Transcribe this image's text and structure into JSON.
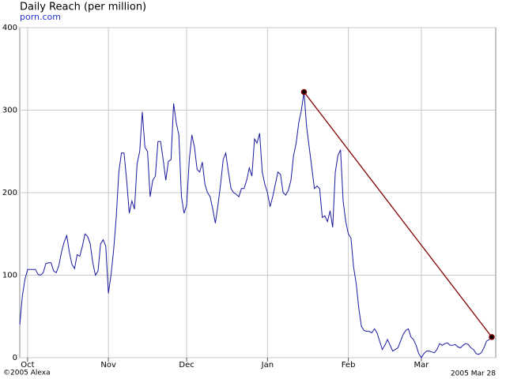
{
  "chart_data": {
    "type": "line",
    "title": "Daily Reach (per million)",
    "subtitle": "porn.com",
    "annotations": [
      "©2005 Alexa",
      "2005 Mar 28"
    ],
    "series": [
      {
        "name": "porn.com",
        "color": "#1a1aa0",
        "values": [
          40,
          75,
          95,
          107,
          107,
          107,
          107,
          101,
          100,
          103,
          114,
          115,
          115,
          105,
          103,
          112,
          128,
          140,
          148,
          128,
          113,
          108,
          125,
          123,
          135,
          150,
          147,
          138,
          115,
          100,
          105,
          138,
          143,
          135,
          78,
          100,
          130,
          170,
          225,
          248,
          248,
          215,
          175,
          190,
          180,
          235,
          250,
          298,
          255,
          250,
          195,
          215,
          220,
          262,
          262,
          240,
          215,
          238,
          240,
          308,
          285,
          270,
          195,
          175,
          185,
          240,
          270,
          255,
          228,
          225,
          237,
          210,
          200,
          195,
          180,
          163,
          185,
          210,
          240,
          248,
          225,
          205,
          200,
          198,
          195,
          205,
          205,
          215,
          230,
          220,
          265,
          260,
          272,
          225,
          210,
          200,
          183,
          195,
          210,
          225,
          222,
          200,
          197,
          203,
          215,
          245,
          260,
          285,
          300,
          322,
          280,
          255,
          230,
          205,
          208,
          205,
          170,
          172,
          165,
          178,
          158,
          225,
          245,
          252,
          190,
          165,
          150,
          145,
          110,
          90,
          60,
          38,
          33,
          32,
          32,
          30,
          35,
          30,
          20,
          10,
          15,
          22,
          15,
          8,
          10,
          12,
          20,
          28,
          33,
          35,
          25,
          22,
          15,
          5,
          0,
          5,
          8,
          8,
          7,
          6,
          10,
          17,
          15,
          17,
          18,
          15,
          15,
          16,
          13,
          12,
          15,
          17,
          16,
          12,
          10,
          5,
          4,
          6,
          12,
          20,
          22,
          25
        ]
      }
    ],
    "trend_color": "#800000",
    "xlim": [
      0,
      181
    ],
    "xticks": [
      {
        "value": 3,
        "label": "Oct"
      },
      {
        "value": 34,
        "label": "Nov"
      },
      {
        "value": 64,
        "label": "Dec"
      },
      {
        "value": 95,
        "label": "Jan"
      },
      {
        "value": 126,
        "label": "Feb"
      },
      {
        "value": 154,
        "label": "Mar"
      }
    ],
    "ylim": [
      0,
      400
    ],
    "yticks": [
      0,
      100,
      200,
      300,
      400
    ],
    "grid": true
  }
}
